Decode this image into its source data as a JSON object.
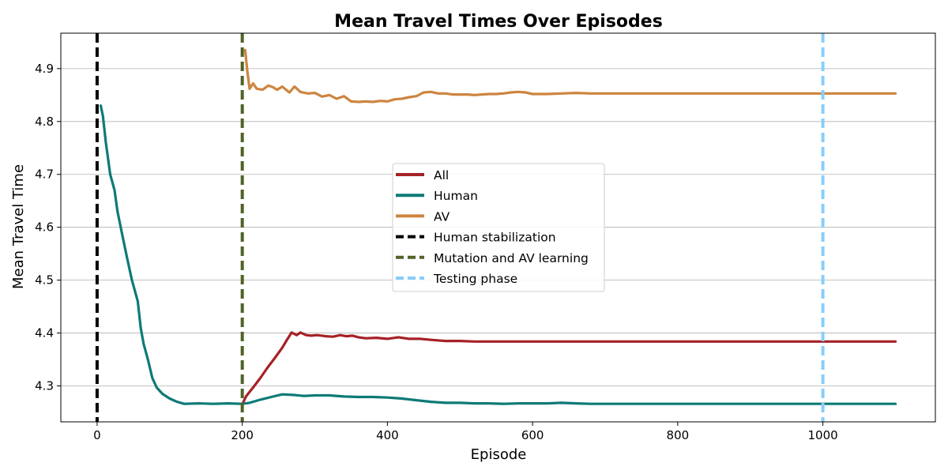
{
  "chart_data": {
    "type": "line",
    "title": "Mean Travel Times Over Episodes",
    "xlabel": "Episode",
    "ylabel": "Mean Travel Time",
    "xlim": [
      -50,
      1155
    ],
    "ylim": [
      4.232,
      4.967
    ],
    "xticks": [
      "0",
      "200",
      "400",
      "600",
      "800",
      "1000"
    ],
    "yticks": [
      "4.3",
      "4.4",
      "4.5",
      "4.6",
      "4.7",
      "4.8",
      "4.9"
    ],
    "grid": "horizontal",
    "legend_position": "center",
    "series": [
      {
        "name": "All",
        "color": "#a62126",
        "points": [
          [
            200,
            4.265
          ],
          [
            205,
            4.28
          ],
          [
            215,
            4.297
          ],
          [
            225,
            4.315
          ],
          [
            235,
            4.335
          ],
          [
            245,
            4.353
          ],
          [
            255,
            4.372
          ],
          [
            262,
            4.388
          ],
          [
            268,
            4.401
          ],
          [
            275,
            4.396
          ],
          [
            280,
            4.401
          ],
          [
            288,
            4.396
          ],
          [
            295,
            4.395
          ],
          [
            303,
            4.396
          ],
          [
            315,
            4.394
          ],
          [
            325,
            4.393
          ],
          [
            335,
            4.396
          ],
          [
            343,
            4.394
          ],
          [
            352,
            4.395
          ],
          [
            360,
            4.392
          ],
          [
            370,
            4.39
          ],
          [
            385,
            4.391
          ],
          [
            400,
            4.389
          ],
          [
            415,
            4.392
          ],
          [
            430,
            4.389
          ],
          [
            445,
            4.389
          ],
          [
            460,
            4.387
          ],
          [
            480,
            4.385
          ],
          [
            500,
            4.385
          ],
          [
            520,
            4.384
          ],
          [
            540,
            4.384
          ],
          [
            560,
            4.384
          ],
          [
            580,
            4.384
          ],
          [
            600,
            4.384
          ],
          [
            620,
            4.384
          ],
          [
            640,
            4.384
          ],
          [
            660,
            4.384
          ],
          [
            680,
            4.384
          ],
          [
            700,
            4.384
          ],
          [
            800,
            4.384
          ],
          [
            900,
            4.384
          ],
          [
            1000,
            4.384
          ],
          [
            1100,
            4.384
          ]
        ]
      },
      {
        "name": "Human",
        "color": "#0d7a77",
        "points": [
          [
            5,
            4.83
          ],
          [
            8,
            4.81
          ],
          [
            12,
            4.76
          ],
          [
            18,
            4.7
          ],
          [
            24,
            4.67
          ],
          [
            28,
            4.63
          ],
          [
            34,
            4.59
          ],
          [
            40,
            4.55
          ],
          [
            48,
            4.5
          ],
          [
            56,
            4.46
          ],
          [
            60,
            4.41
          ],
          [
            64,
            4.38
          ],
          [
            70,
            4.35
          ],
          [
            76,
            4.315
          ],
          [
            82,
            4.297
          ],
          [
            90,
            4.285
          ],
          [
            100,
            4.276
          ],
          [
            110,
            4.27
          ],
          [
            120,
            4.266
          ],
          [
            140,
            4.267
          ],
          [
            160,
            4.266
          ],
          [
            180,
            4.267
          ],
          [
            200,
            4.266
          ],
          [
            210,
            4.268
          ],
          [
            225,
            4.274
          ],
          [
            240,
            4.279
          ],
          [
            255,
            4.284
          ],
          [
            270,
            4.283
          ],
          [
            285,
            4.281
          ],
          [
            300,
            4.282
          ],
          [
            320,
            4.282
          ],
          [
            340,
            4.28
          ],
          [
            360,
            4.279
          ],
          [
            380,
            4.279
          ],
          [
            400,
            4.278
          ],
          [
            420,
            4.276
          ],
          [
            440,
            4.273
          ],
          [
            460,
            4.27
          ],
          [
            480,
            4.268
          ],
          [
            500,
            4.268
          ],
          [
            520,
            4.267
          ],
          [
            540,
            4.267
          ],
          [
            560,
            4.266
          ],
          [
            580,
            4.267
          ],
          [
            600,
            4.267
          ],
          [
            620,
            4.267
          ],
          [
            640,
            4.268
          ],
          [
            660,
            4.267
          ],
          [
            680,
            4.266
          ],
          [
            700,
            4.266
          ],
          [
            800,
            4.266
          ],
          [
            900,
            4.266
          ],
          [
            1000,
            4.266
          ],
          [
            1100,
            4.266
          ]
        ]
      },
      {
        "name": "AV",
        "color": "#cd853f",
        "points": [
          [
            204,
            4.935
          ],
          [
            207,
            4.895
          ],
          [
            210,
            4.862
          ],
          [
            215,
            4.872
          ],
          [
            220,
            4.862
          ],
          [
            228,
            4.86
          ],
          [
            236,
            4.868
          ],
          [
            242,
            4.865
          ],
          [
            248,
            4.86
          ],
          [
            255,
            4.866
          ],
          [
            265,
            4.855
          ],
          [
            272,
            4.866
          ],
          [
            280,
            4.856
          ],
          [
            290,
            4.853
          ],
          [
            300,
            4.854
          ],
          [
            310,
            4.847
          ],
          [
            320,
            4.85
          ],
          [
            330,
            4.843
          ],
          [
            340,
            4.848
          ],
          [
            350,
            4.838
          ],
          [
            360,
            4.837
          ],
          [
            370,
            4.838
          ],
          [
            380,
            4.837
          ],
          [
            390,
            4.839
          ],
          [
            400,
            4.838
          ],
          [
            410,
            4.842
          ],
          [
            420,
            4.843
          ],
          [
            430,
            4.846
          ],
          [
            440,
            4.848
          ],
          [
            450,
            4.855
          ],
          [
            460,
            4.856
          ],
          [
            470,
            4.853
          ],
          [
            480,
            4.853
          ],
          [
            490,
            4.851
          ],
          [
            500,
            4.851
          ],
          [
            510,
            4.851
          ],
          [
            520,
            4.85
          ],
          [
            530,
            4.851
          ],
          [
            540,
            4.852
          ],
          [
            550,
            4.852
          ],
          [
            560,
            4.853
          ],
          [
            570,
            4.855
          ],
          [
            580,
            4.856
          ],
          [
            590,
            4.855
          ],
          [
            600,
            4.852
          ],
          [
            620,
            4.852
          ],
          [
            640,
            4.853
          ],
          [
            660,
            4.854
          ],
          [
            680,
            4.853
          ],
          [
            700,
            4.853
          ],
          [
            800,
            4.853
          ],
          [
            900,
            4.853
          ],
          [
            1000,
            4.853
          ],
          [
            1100,
            4.853
          ]
        ]
      }
    ],
    "vlines": [
      {
        "name": "Human stabilization",
        "x": 0,
        "color": "#000000"
      },
      {
        "name": "Mutation and AV learning",
        "x": 200,
        "color": "#4f6228"
      },
      {
        "name": "Testing phase",
        "x": 1000,
        "color": "#87cefa"
      }
    ]
  }
}
